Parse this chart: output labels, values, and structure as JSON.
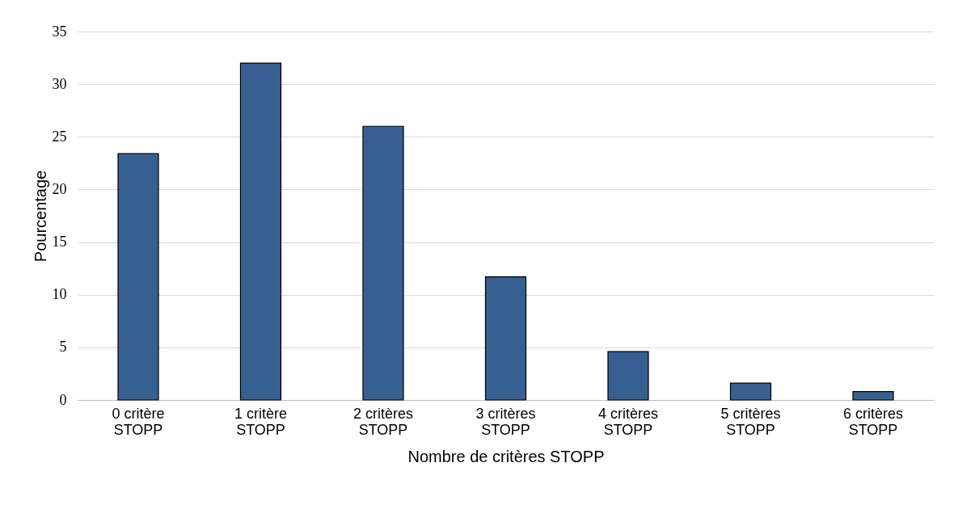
{
  "chart_data": {
    "type": "bar",
    "xlabel": "Nombre de critères STOPP",
    "ylabel": "Pourcentage",
    "categories": [
      "0 critère STOPP",
      "1 critère STOPP",
      "2 critères STOPP",
      "3 critères STOPP",
      "4 critères STOPP",
      "5 critères STOPP",
      "6 critères STOPP"
    ],
    "values": [
      23.4,
      32.0,
      26.0,
      11.7,
      4.6,
      1.6,
      0.8
    ],
    "color": "#376092",
    "ylim": [
      0,
      35
    ],
    "yticks": [
      0,
      5,
      10,
      15,
      20,
      25,
      30,
      35
    ],
    "grid": "y"
  }
}
